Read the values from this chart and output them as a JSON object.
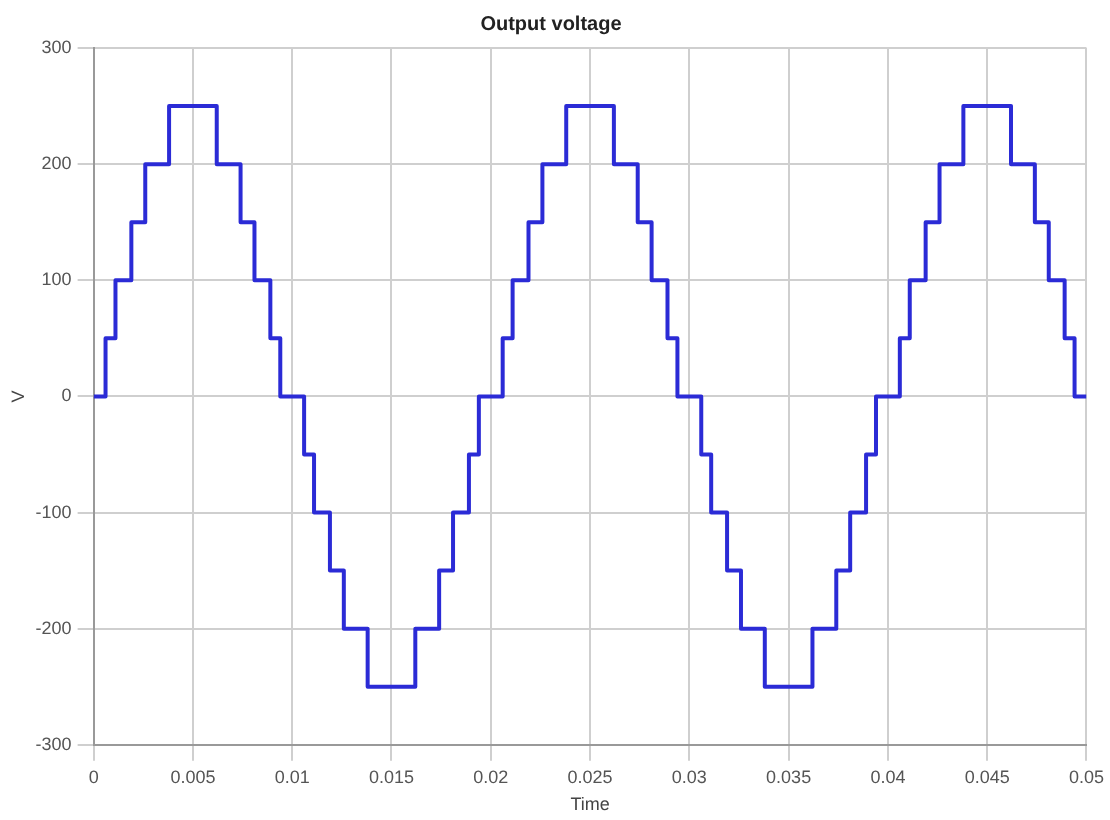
{
  "chart_data": {
    "type": "step",
    "title": "Output voltage",
    "xlabel": "Time",
    "ylabel": "V",
    "x": [
      0,
      0.0006,
      0.0011,
      0.0019,
      0.0026,
      0.0038,
      0.0062,
      0.0074,
      0.0081,
      0.0089,
      0.0094,
      0.01,
      0.0106,
      0.0111,
      0.0119,
      0.0126,
      0.0138,
      0.0162,
      0.0174,
      0.0181,
      0.0189,
      0.0194,
      0.02,
      0.0206,
      0.0211,
      0.0219,
      0.0226,
      0.0238,
      0.0262,
      0.0274,
      0.0281,
      0.0289,
      0.0294,
      0.03,
      0.0306,
      0.0311,
      0.0319,
      0.0326,
      0.0338,
      0.0362,
      0.0374,
      0.0381,
      0.0389,
      0.0394,
      0.04,
      0.0406,
      0.0411,
      0.0419,
      0.0426,
      0.0438,
      0.0462,
      0.0474,
      0.0481,
      0.0489,
      0.0494,
      0.05
    ],
    "series": [
      {
        "color": "#2b2bd6",
        "values": [
          0,
          50,
          100,
          150,
          200,
          250,
          200,
          150,
          100,
          50,
          0,
          0,
          -50,
          -100,
          -150,
          -200,
          -250,
          -200,
          -150,
          -100,
          -50,
          0,
          0,
          50,
          100,
          150,
          200,
          250,
          200,
          150,
          100,
          50,
          0,
          0,
          -50,
          -100,
          -150,
          -200,
          -250,
          -200,
          -150,
          -100,
          -50,
          0,
          0,
          50,
          100,
          150,
          200,
          250,
          200,
          150,
          100,
          50,
          0,
          0
        ]
      }
    ],
    "xlim": [
      0,
      0.05
    ],
    "xticks": [
      0,
      0.005,
      0.01,
      0.015,
      0.02,
      0.025,
      0.03,
      0.035,
      0.04,
      0.045,
      0.05
    ],
    "ylim": [
      -300,
      300
    ],
    "yticks": [
      -300,
      -200,
      -100,
      0,
      100,
      200,
      300
    ],
    "grid": true,
    "legend": false,
    "marker": "none",
    "line_style": "solid"
  }
}
